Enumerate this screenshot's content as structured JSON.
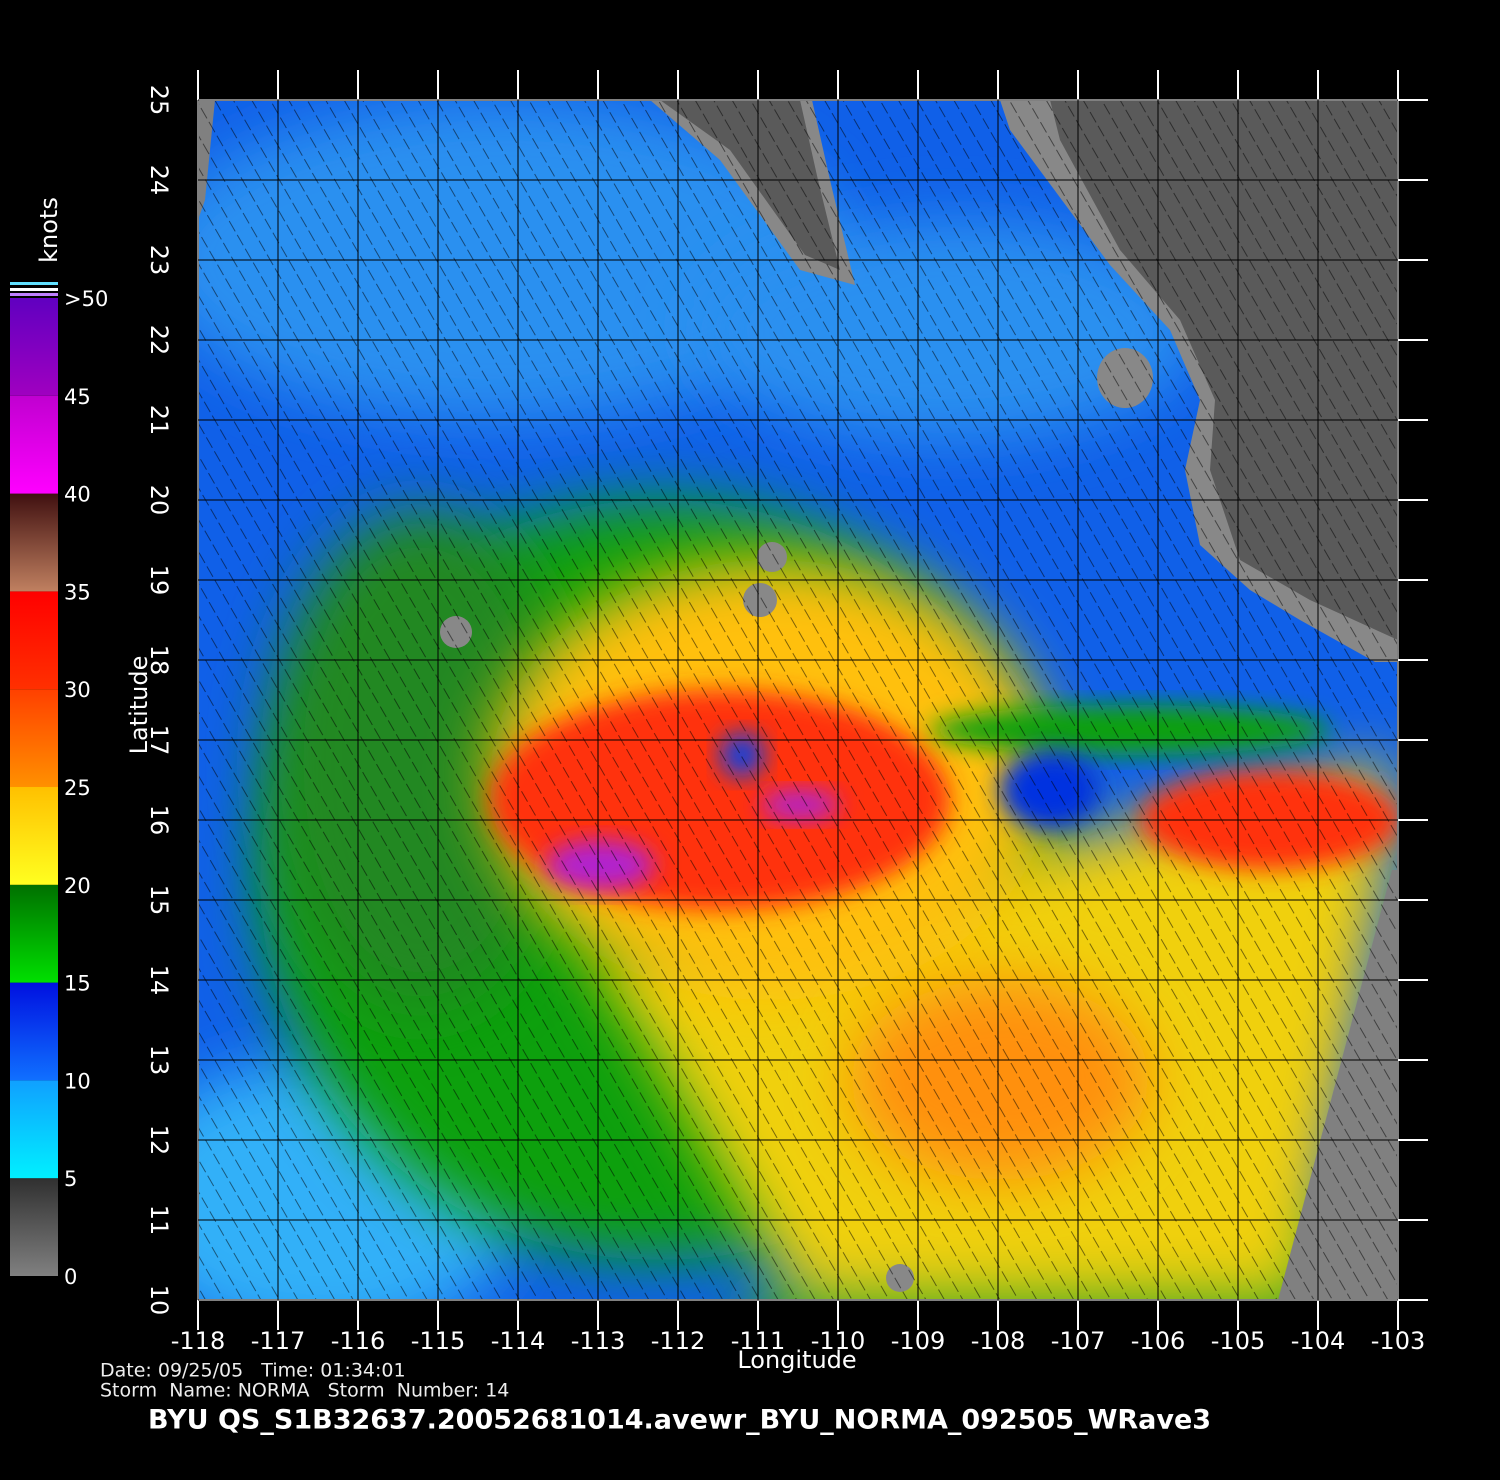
{
  "map": {
    "x_label": "Longitude",
    "y_label": "Latitude",
    "xlim": [
      -118,
      -103
    ],
    "ylim": [
      10,
      25
    ],
    "xticks": [
      -118,
      -117,
      -116,
      -115,
      -114,
      -113,
      -112,
      -111,
      -110,
      -109,
      -108,
      -107,
      -106,
      -105,
      -104,
      -103
    ],
    "yticks": [
      10,
      11,
      12,
      13,
      14,
      15,
      16,
      17,
      18,
      19,
      20,
      21,
      22,
      23,
      24,
      25
    ],
    "grid": true,
    "colorbar": {
      "label": "knots",
      "lim": [
        0,
        50
      ],
      "ticks": [
        0,
        5,
        10,
        15,
        20,
        25,
        30,
        35,
        40,
        45,
        {
          "value": 50,
          "label": ">50"
        }
      ],
      "colors": [
        [
          "#808080",
          "#303030"
        ],
        [
          "#00f0ff",
          "#10a0ff"
        ],
        [
          "#1070ff",
          "#0010e0"
        ],
        [
          "#00e000",
          "#007000"
        ],
        [
          "#ffff20",
          "#ffc000"
        ],
        [
          "#ff9000",
          "#ff4000"
        ],
        [
          "#ff3000",
          "#ff0000"
        ],
        [
          "#c08060",
          "#401010"
        ],
        [
          "#ff00ff",
          "#c000d0"
        ],
        [
          "#a000c0",
          "#6000c0"
        ]
      ]
    },
    "info_line1": "Date: 09/25/05   Time: 01:34:01",
    "info_line2": "Storm  Name: NORMA   Storm  Number: 14",
    "file_name": "BYU  QS_S1B32637.20052681014.avewr_BYU_NORMA_092505_WRave3"
  }
}
